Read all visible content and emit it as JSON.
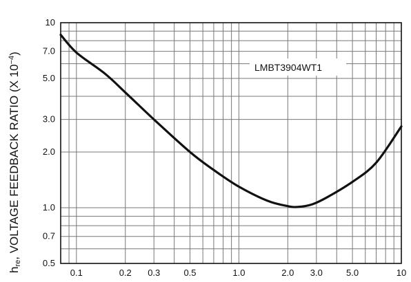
{
  "chart_data": {
    "type": "line",
    "title": "",
    "x_scale": "log",
    "y_scale": "log",
    "xlim": [
      0.08,
      10
    ],
    "ylim": [
      0.5,
      10
    ],
    "x_ticks": [
      0.1,
      0.2,
      0.3,
      0.5,
      1.0,
      2.0,
      3.0,
      5.0,
      10
    ],
    "x_tick_labels": [
      "0.1",
      "0.2",
      "0.3",
      "0.5",
      "1.0",
      "2.0",
      "3.0",
      "5.0",
      "10"
    ],
    "y_ticks": [
      0.5,
      0.7,
      1.0,
      2.0,
      3.0,
      5.0,
      7.0,
      10
    ],
    "y_tick_labels": [
      "0.5",
      "0.7",
      "1.0",
      "2.0",
      "3.0",
      "5.0",
      "7.0",
      "10"
    ],
    "ylabel": {
      "h": "h",
      "sub": "re",
      "text": ", VOLTAGE FEEDBACK RATIO (X 10",
      "sup": "−4",
      "close": ")"
    },
    "xlabel": "",
    "grid": true,
    "annotation": "LMBT3904WT1",
    "series": [
      {
        "x": [
          0.08,
          0.1,
          0.15,
          0.2,
          0.3,
          0.5,
          0.7,
          1.0,
          1.5,
          2.0,
          2.3,
          2.8,
          3.5,
          5.0,
          7.0,
          10
        ],
        "y": [
          8.6,
          6.9,
          5.3,
          4.2,
          3.0,
          2.0,
          1.6,
          1.3,
          1.09,
          1.02,
          1.01,
          1.04,
          1.14,
          1.38,
          1.75,
          2.75
        ]
      }
    ]
  }
}
